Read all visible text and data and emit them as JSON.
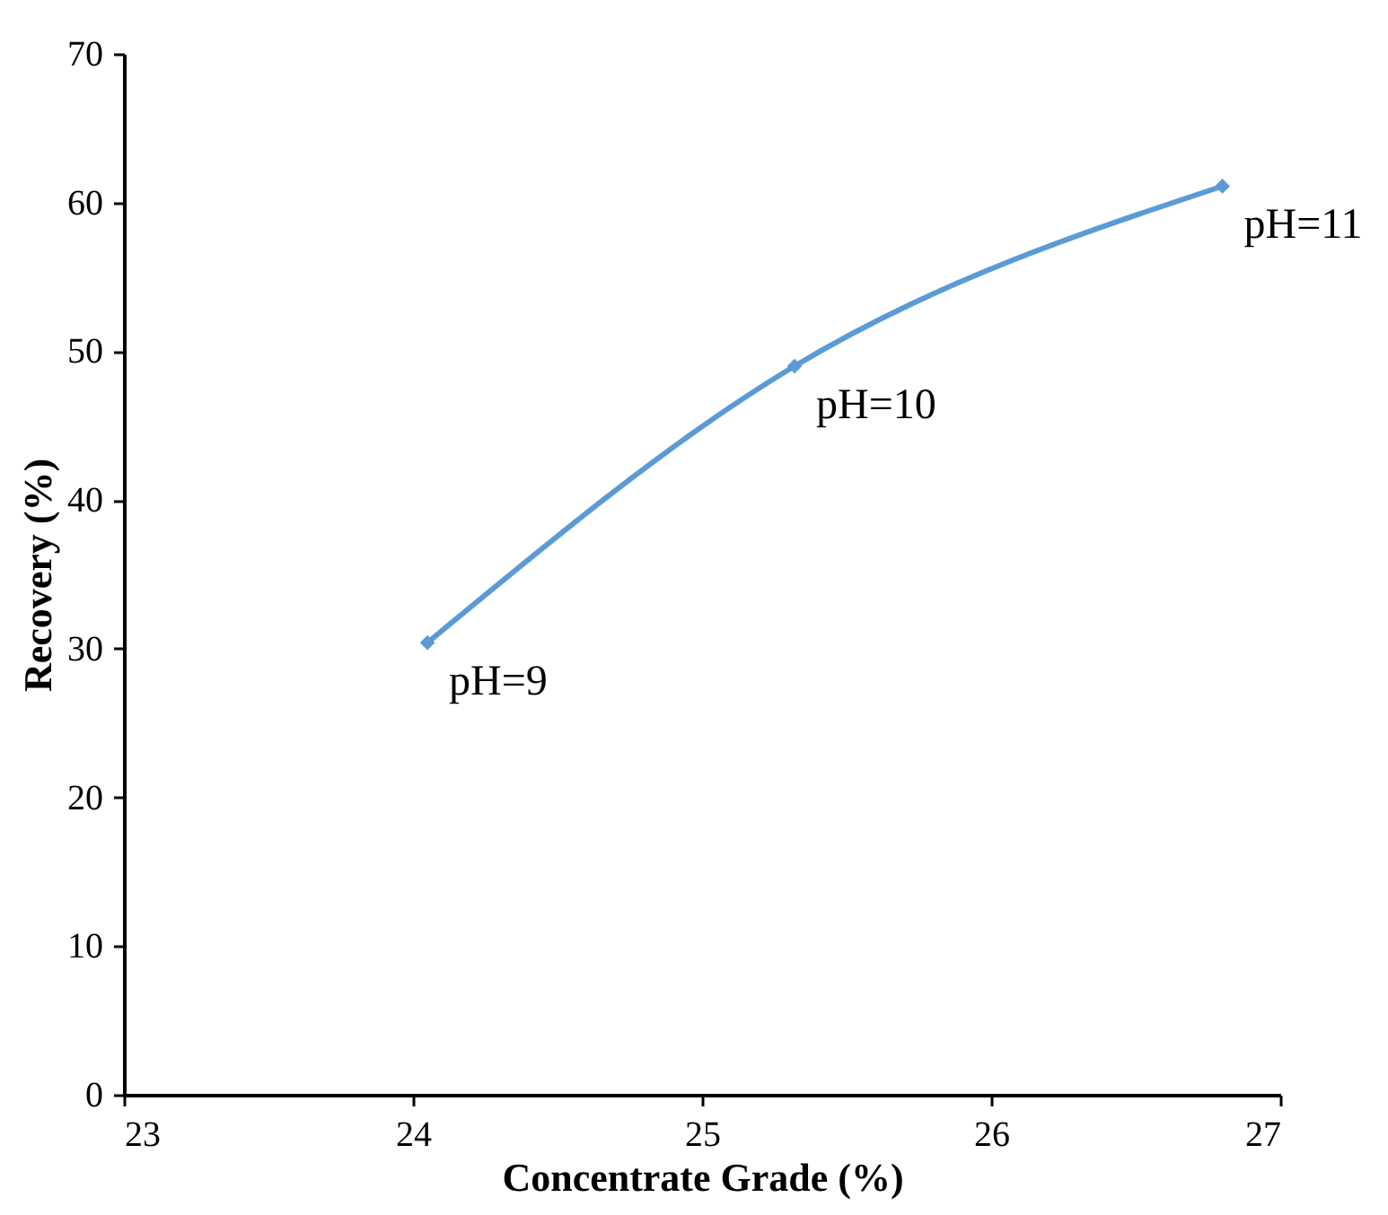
{
  "chart_data": {
    "type": "line",
    "xlabel": "Concentrate Grade (%)",
    "ylabel": "Recovery (%)",
    "x": [
      24.05,
      25.32,
      26.8
    ],
    "series": [
      {
        "color": "#5b9bd5",
        "values": [
          30.4,
          49.0,
          61.1
        ]
      }
    ],
    "xlim": [
      23,
      27
    ],
    "xticks": [
      23,
      24,
      25,
      26,
      27
    ],
    "ylim": [
      0,
      70
    ],
    "yticks": [
      0,
      10,
      20,
      30,
      40,
      50,
      60,
      70
    ],
    "grid": false,
    "legend": false,
    "marker": "diamond",
    "line_style": "solid",
    "annotations": [
      {
        "text": "pH=9",
        "x": 24.05,
        "y": 30.4
      },
      {
        "text": "pH=10",
        "x": 25.32,
        "y": 49.0
      },
      {
        "text": "pH=11",
        "x": 26.8,
        "y": 61.1
      }
    ]
  }
}
